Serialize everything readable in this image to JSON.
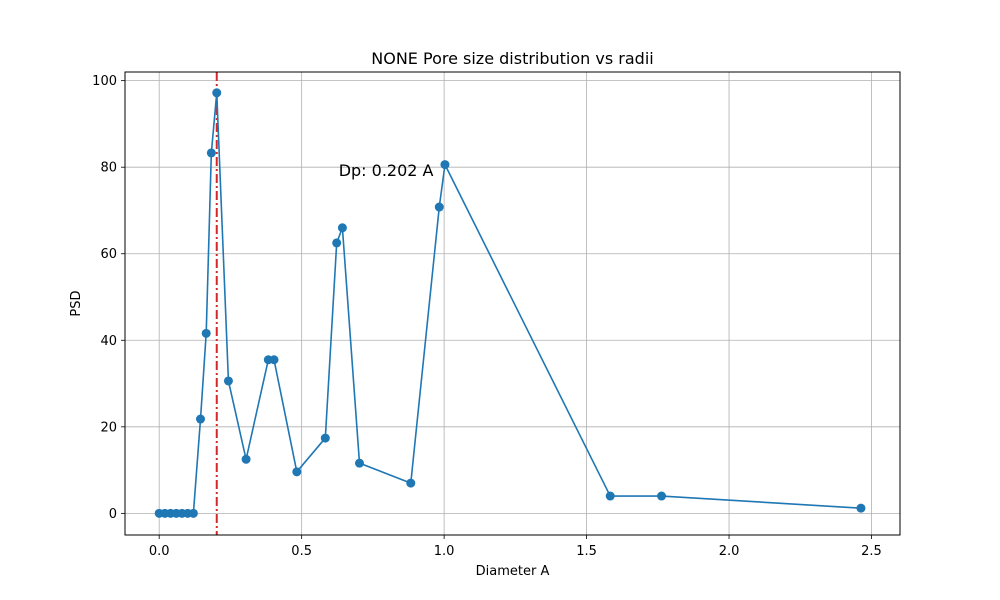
{
  "chart_data": {
    "type": "line",
    "title": "NONE Pore size distribution vs radii",
    "xlabel": "Diameter A",
    "ylabel": "PSD",
    "xlim": [
      -0.12,
      2.6
    ],
    "ylim": [
      -5,
      102
    ],
    "xticks": [
      0.0,
      0.5,
      1.0,
      1.5,
      2.0,
      2.5
    ],
    "xtick_labels": [
      "0.0",
      "0.5",
      "1.0",
      "1.5",
      "2.0",
      "2.5"
    ],
    "yticks": [
      0,
      20,
      40,
      60,
      80,
      100
    ],
    "ytick_labels": [
      "0",
      "20",
      "40",
      "60",
      "80",
      "100"
    ],
    "grid": true,
    "series": [
      {
        "color": "#1f77b4",
        "marker": "circle",
        "x": [
          0.0,
          0.02,
          0.04,
          0.06,
          0.08,
          0.1,
          0.12,
          0.145,
          0.165,
          0.183,
          0.202,
          0.243,
          0.305,
          0.383,
          0.403,
          0.483,
          0.583,
          0.623,
          0.643,
          0.703,
          0.883,
          0.983,
          1.003,
          1.583,
          1.763,
          2.463
        ],
        "y": [
          0,
          0,
          0,
          0,
          0,
          0,
          0,
          21.8,
          41.6,
          83.3,
          97.2,
          30.6,
          12.5,
          35.5,
          35.5,
          9.6,
          17.4,
          62.5,
          66.0,
          11.6,
          7.0,
          70.8,
          80.6,
          4.0,
          4.0,
          1.2
        ]
      }
    ],
    "vline": {
      "x": 0.202,
      "color": "#d62728",
      "style": "dashdot"
    },
    "annotation": {
      "text": "Dp: 0.202 A",
      "x": 0.63,
      "y": 78
    }
  }
}
